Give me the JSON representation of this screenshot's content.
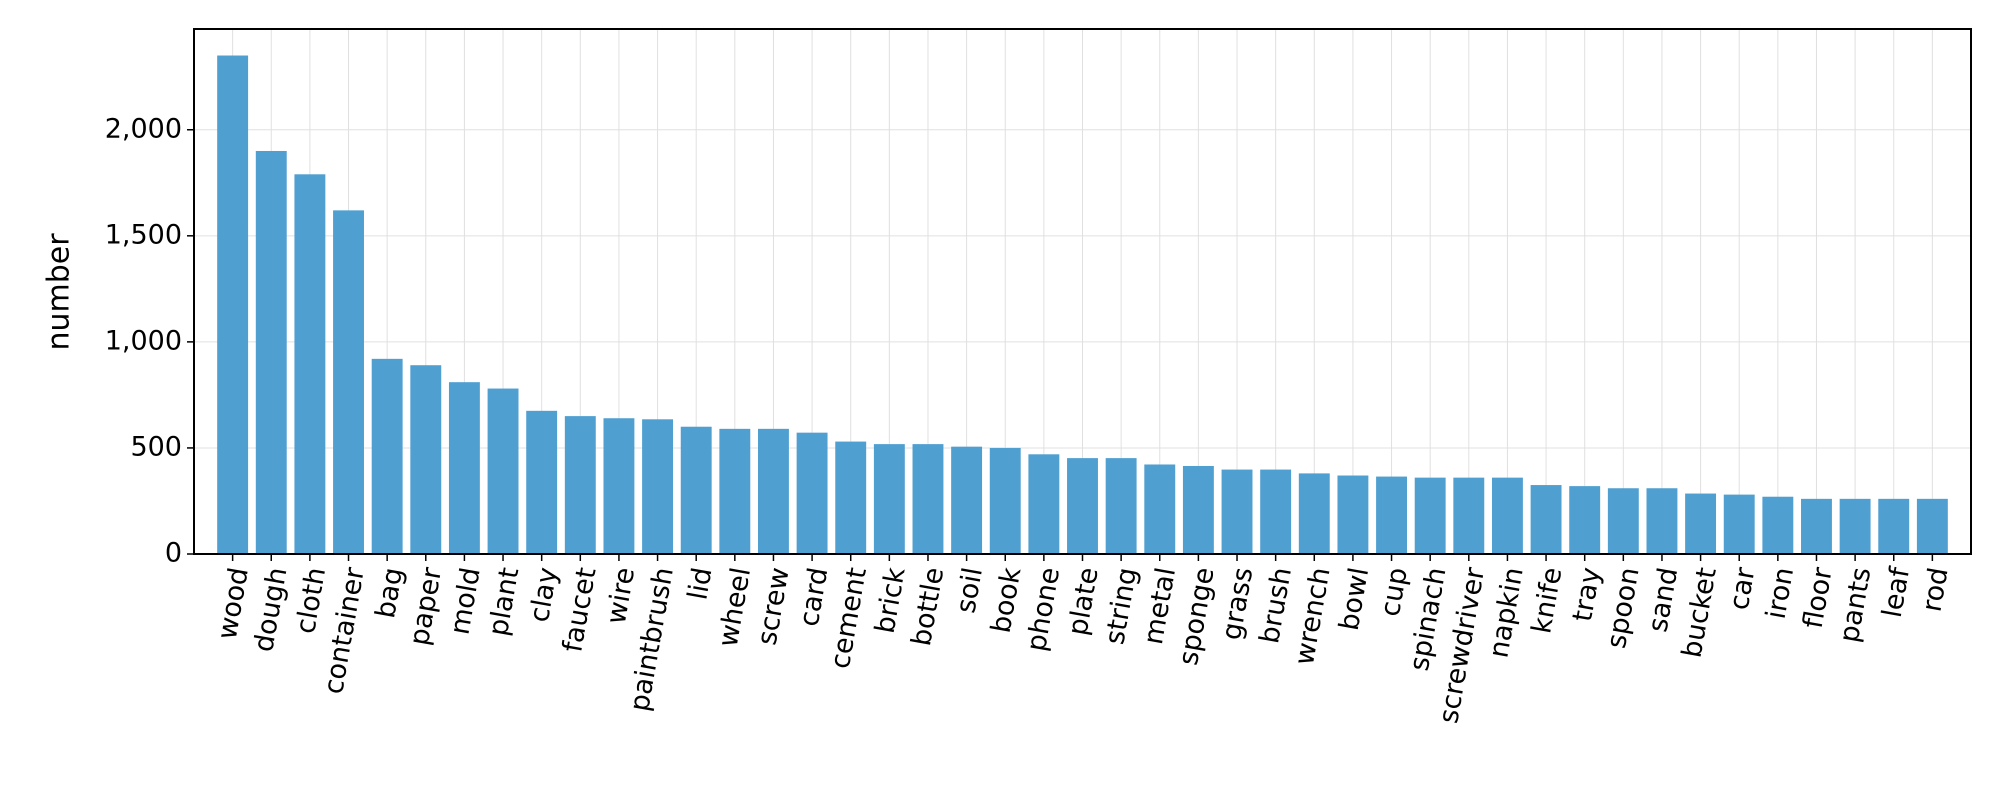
{
  "chart_data": {
    "type": "bar",
    "y_label": "number",
    "categories": [
      "wood",
      "dough",
      "cloth",
      "container",
      "bag",
      "paper",
      "mold",
      "plant",
      "clay",
      "faucet",
      "wire",
      "paintbrush",
      "lid",
      "wheel",
      "screw",
      "card",
      "cement",
      "brick",
      "bottle",
      "soil",
      "book",
      "phone",
      "plate",
      "string",
      "metal",
      "sponge",
      "grass",
      "brush",
      "wrench",
      "bowl",
      "cup",
      "spinach",
      "screwdriver",
      "napkin",
      "knife",
      "tray",
      "spoon",
      "sand",
      "bucket",
      "car",
      "iron",
      "floor",
      "pants",
      "leaf",
      "rod"
    ],
    "values": [
      2350,
      1900,
      1790,
      1620,
      920,
      890,
      810,
      780,
      675,
      650,
      640,
      635,
      600,
      590,
      590,
      572,
      530,
      518,
      518,
      506,
      500,
      470,
      452,
      452,
      422,
      415,
      398,
      398,
      380,
      370,
      365,
      360,
      360,
      360,
      325,
      320,
      310,
      310,
      285,
      280,
      270,
      260,
      260,
      260,
      260
    ],
    "color": "#4f9fd1",
    "ylim": [
      0,
      2475
    ],
    "yticks": [
      0,
      500,
      {
        "value": 1000,
        "label": "1,000"
      },
      {
        "value": 1500,
        "label": "1,500"
      },
      {
        "value": 2000,
        "label": "2,000"
      }
    ],
    "grid": true
  }
}
